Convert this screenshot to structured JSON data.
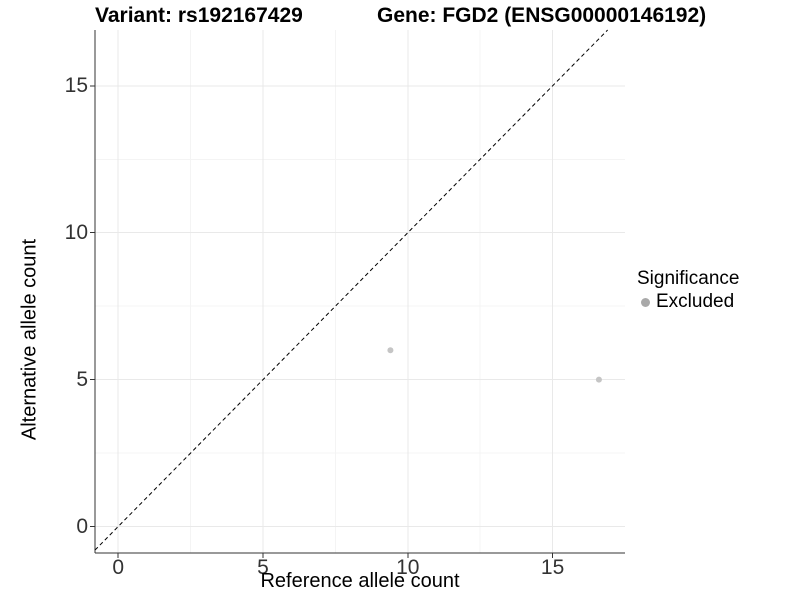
{
  "chart_data": {
    "type": "scatter",
    "title_left": "Variant: rs192167429",
    "title_right": "Gene: FGD2 (ENSG00000146192)",
    "xlabel": "Reference allele count",
    "ylabel": "Alternative allele count",
    "xlim": [
      -0.8,
      17.5
    ],
    "ylim": [
      -0.9,
      16.9
    ],
    "x_ticks": [
      0,
      5,
      10,
      15
    ],
    "y_ticks": [
      0,
      5,
      10,
      15
    ],
    "x_minor_ticks": [
      2.5,
      7.5,
      12.5
    ],
    "y_minor_ticks": [
      2.5,
      7.5,
      12.5
    ],
    "grid": "major+minor",
    "series": [
      {
        "name": "Excluded",
        "marker": "circle",
        "color": "#c5c5c5",
        "points": [
          [
            9.4,
            6
          ],
          [
            16.6,
            5
          ]
        ]
      }
    ],
    "reference_line": {
      "equation": "y = x",
      "style": "dashed",
      "color": "#000000"
    },
    "legend": {
      "title": "Significance",
      "position": "right",
      "entries": [
        {
          "label": "Excluded",
          "swatch_color": "#a9a9a9",
          "marker": "circle"
        }
      ]
    }
  },
  "colors": {
    "background": "#ffffff",
    "axis_line": "#333333",
    "tick_mark": "#333333",
    "grid_major": "#e9e9e9",
    "grid_minor": "#f4f4f4"
  }
}
